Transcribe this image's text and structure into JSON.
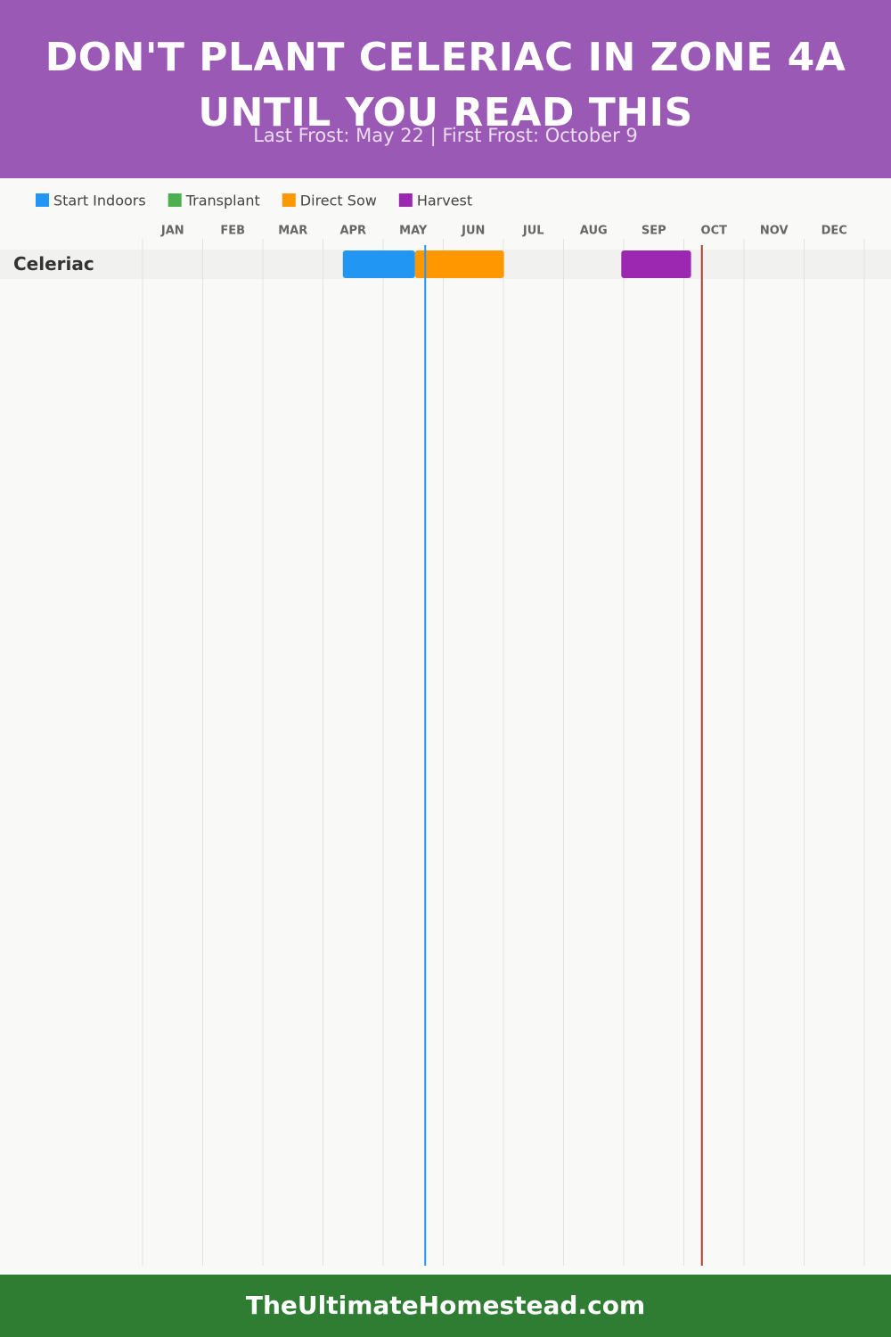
{
  "chart_data": {
    "type": "gantt",
    "title": "DON'T PLANT CELERIAC IN ZONE 4A UNTIL YOU READ THIS",
    "subtitle": "Last Frost: May 22 | First Frost: October 9",
    "categories": [
      "JAN",
      "FEB",
      "MAR",
      "APR",
      "MAY",
      "JUN",
      "JUL",
      "AUG",
      "SEP",
      "OCT",
      "NOV",
      "DEC"
    ],
    "xlim": [
      0,
      12
    ],
    "rows": [
      "Celeriac"
    ],
    "series": [
      {
        "name": "Start Indoors",
        "color": "#2196f3",
        "ranges": [
          {
            "row": 0,
            "start": 3.33,
            "end": 4.53
          }
        ]
      },
      {
        "name": "Transplant",
        "color": "#4caf50",
        "ranges": []
      },
      {
        "name": "Direct Sow",
        "color": "#ff9800",
        "ranges": [
          {
            "row": 0,
            "start": 4.53,
            "end": 6.01
          }
        ]
      },
      {
        "name": "Harvest",
        "color": "#9c27b0",
        "ranges": [
          {
            "row": 0,
            "start": 7.96,
            "end": 9.12
          }
        ]
      }
    ],
    "markers": [
      {
        "value": 4.7,
        "color": "#2196f3"
      },
      {
        "value": 9.3,
        "color": "#b03a2e"
      }
    ],
    "footer": "TheUltimateHomestead.com"
  }
}
